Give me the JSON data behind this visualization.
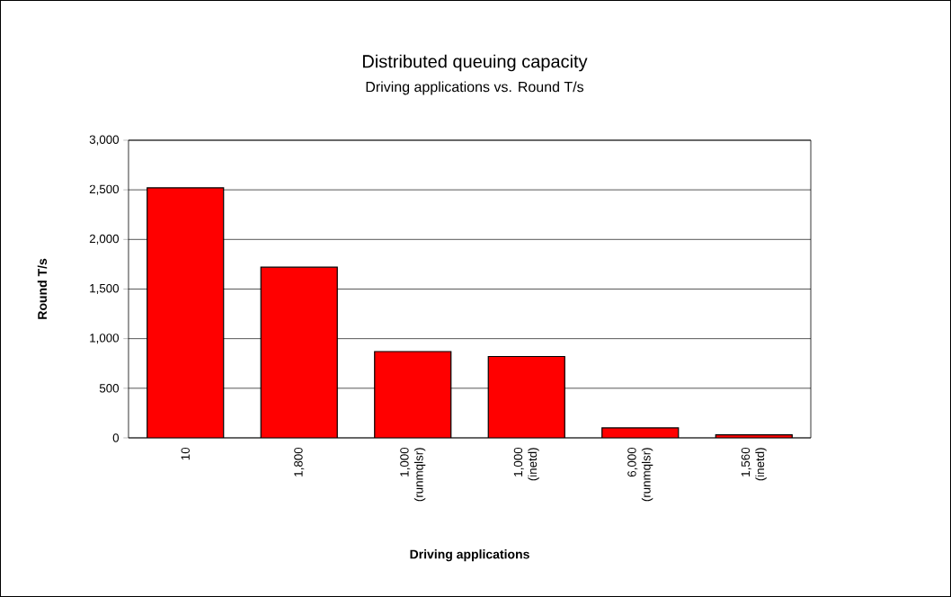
{
  "chart_data": {
    "type": "bar",
    "title": "Distributed queuing capacity",
    "subtitle": "Driving applications vs. Round T/s",
    "xlabel": "Driving applications",
    "ylabel": "Round T/s",
    "categories": [
      "10",
      "1,800",
      "1,000 (runmqlsr)",
      "1,000 (inetd)",
      "6,000 (runmqlsr)",
      "1,560 (inetd)"
    ],
    "values": [
      2520,
      1720,
      870,
      820,
      100,
      30
    ],
    "color": "#ff0000",
    "ylim": [
      0,
      3000
    ],
    "yticks": [
      {
        "value": 0,
        "label": "0"
      },
      {
        "value": 500,
        "label": "500"
      },
      {
        "value": 1000,
        "label": "1,000"
      },
      {
        "value": 1500,
        "label": "1,500"
      },
      {
        "value": 2000,
        "label": "2,000"
      },
      {
        "value": 2500,
        "label": "2,500"
      },
      {
        "value": 3000,
        "label": "3,000"
      }
    ],
    "grid": "y"
  }
}
